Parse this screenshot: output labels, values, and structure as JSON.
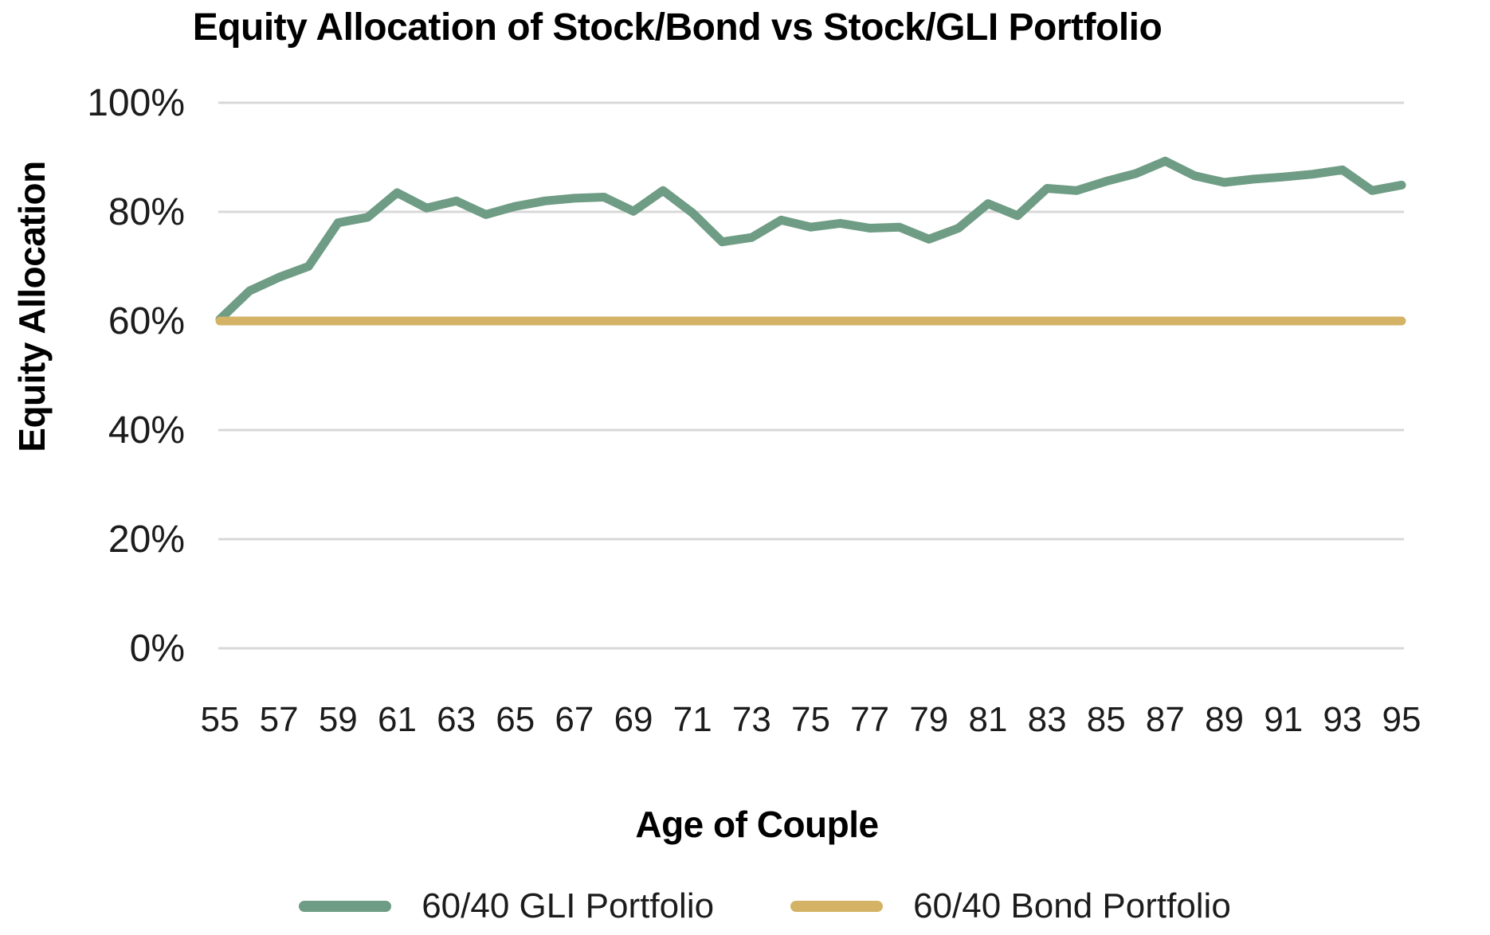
{
  "chart_data": {
    "type": "line",
    "title": "Equity Allocation of Stock/Bond vs Stock/GLI Portfolio",
    "xlabel": "Age of Couple",
    "ylabel": "Equity Allocation",
    "x": [
      55,
      56,
      57,
      58,
      59,
      60,
      61,
      62,
      63,
      64,
      65,
      66,
      67,
      68,
      69,
      70,
      71,
      72,
      73,
      74,
      75,
      76,
      77,
      78,
      79,
      80,
      81,
      82,
      83,
      84,
      85,
      86,
      87,
      88,
      89,
      90,
      91,
      92,
      93,
      94,
      95
    ],
    "x_tick_labels": [
      "55",
      "57",
      "59",
      "61",
      "63",
      "65",
      "67",
      "69",
      "71",
      "73",
      "75",
      "77",
      "79",
      "81",
      "83",
      "85",
      "87",
      "89",
      "91",
      "93",
      "95"
    ],
    "y_ticks": [
      {
        "value": 0,
        "label": "0%"
      },
      {
        "value": 20,
        "label": "20%"
      },
      {
        "value": 40,
        "label": "40%"
      },
      {
        "value": 60,
        "label": "60%"
      },
      {
        "value": 80,
        "label": "80%"
      },
      {
        "value": 100,
        "label": "100%"
      }
    ],
    "ylim": [
      0,
      100
    ],
    "grid": "horizontal",
    "legend_position": "bottom",
    "series": [
      {
        "name": "60/40 GLI Portfolio",
        "color": "#6F9C84",
        "values": [
          60.3,
          65.5,
          68.0,
          70.0,
          78.0,
          79.0,
          83.5,
          80.7,
          82.0,
          79.5,
          81.0,
          82.0,
          82.5,
          82.7,
          80.1,
          83.9,
          79.8,
          74.5,
          75.3,
          78.5,
          77.2,
          77.9,
          77.0,
          77.2,
          75.0,
          77.0,
          81.5,
          79.3,
          84.3,
          83.9,
          85.6,
          87.0,
          89.3,
          86.6,
          85.4,
          86.0,
          86.4,
          86.9,
          87.7,
          83.9,
          84.9
        ]
      },
      {
        "name": "60/40 Bond Portfolio",
        "color": "#D4B366",
        "values": [
          60,
          60,
          60,
          60,
          60,
          60,
          60,
          60,
          60,
          60,
          60,
          60,
          60,
          60,
          60,
          60,
          60,
          60,
          60,
          60,
          60,
          60,
          60,
          60,
          60,
          60,
          60,
          60,
          60,
          60,
          60,
          60,
          60,
          60,
          60,
          60,
          60,
          60,
          60,
          60,
          60
        ]
      }
    ]
  },
  "colors": {
    "gridline": "#D8D8D8",
    "tick_text": "#1C1C1C",
    "title_text": "#000000",
    "background": "#FFFFFF"
  }
}
